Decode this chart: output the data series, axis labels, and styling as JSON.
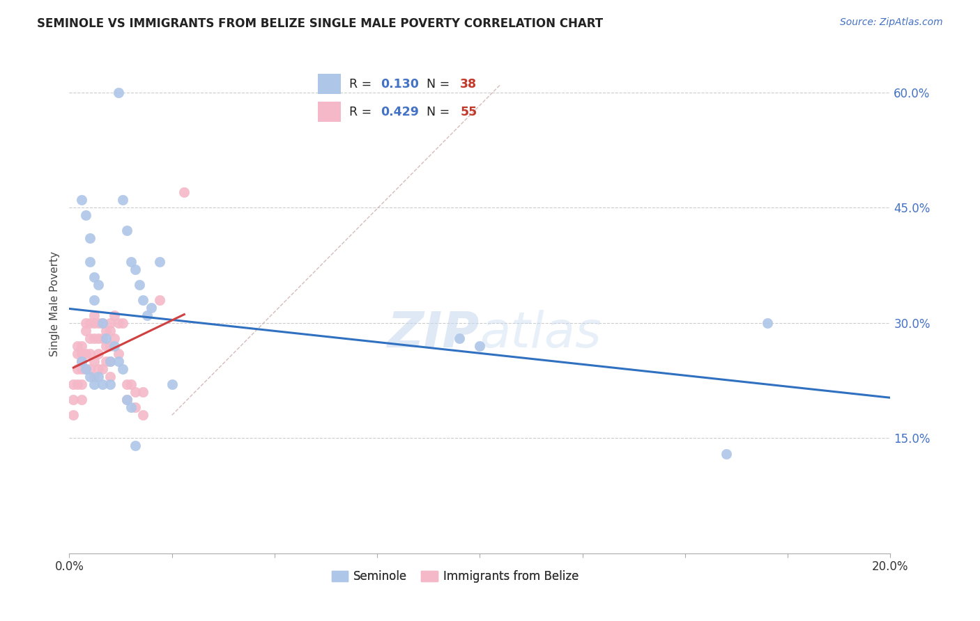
{
  "title": "SEMINOLE VS IMMIGRANTS FROM BELIZE SINGLE MALE POVERTY CORRELATION CHART",
  "source": "Source: ZipAtlas.com",
  "ylabel": "Single Male Poverty",
  "ytick_labels": [
    "15.0%",
    "30.0%",
    "45.0%",
    "60.0%"
  ],
  "ytick_values": [
    0.15,
    0.3,
    0.45,
    0.6
  ],
  "xlim": [
    0.0,
    0.2
  ],
  "ylim": [
    0.0,
    0.65
  ],
  "legend_r1": "0.130",
  "legend_n1": "38",
  "legend_r2": "0.429",
  "legend_n2": "55",
  "seminole_color": "#aec6e8",
  "belize_color": "#f4b8c8",
  "line_blue": "#3070c0",
  "line_red": "#d04040",
  "line_diag_color": "#ccaaaa",
  "seminole_x": [
    0.012,
    0.013,
    0.014,
    0.015,
    0.016,
    0.017,
    0.018,
    0.019,
    0.02,
    0.022,
    0.003,
    0.004,
    0.005,
    0.005,
    0.006,
    0.006,
    0.007,
    0.008,
    0.009,
    0.01,
    0.01,
    0.011,
    0.012,
    0.013,
    0.014,
    0.015,
    0.016,
    0.003,
    0.004,
    0.005,
    0.006,
    0.007,
    0.008,
    0.025,
    0.095,
    0.1,
    0.16,
    0.17
  ],
  "seminole_y": [
    0.6,
    0.46,
    0.42,
    0.38,
    0.37,
    0.35,
    0.33,
    0.31,
    0.32,
    0.38,
    0.46,
    0.44,
    0.41,
    0.38,
    0.36,
    0.33,
    0.35,
    0.3,
    0.28,
    0.25,
    0.22,
    0.27,
    0.25,
    0.24,
    0.2,
    0.19,
    0.14,
    0.25,
    0.24,
    0.23,
    0.22,
    0.23,
    0.22,
    0.22,
    0.28,
    0.27,
    0.13,
    0.3
  ],
  "belize_x": [
    0.001,
    0.001,
    0.001,
    0.002,
    0.002,
    0.002,
    0.002,
    0.003,
    0.003,
    0.003,
    0.003,
    0.003,
    0.003,
    0.004,
    0.004,
    0.004,
    0.004,
    0.005,
    0.005,
    0.005,
    0.005,
    0.006,
    0.006,
    0.006,
    0.006,
    0.006,
    0.007,
    0.007,
    0.007,
    0.007,
    0.008,
    0.008,
    0.008,
    0.009,
    0.009,
    0.009,
    0.01,
    0.01,
    0.01,
    0.01,
    0.01,
    0.011,
    0.011,
    0.012,
    0.012,
    0.013,
    0.014,
    0.014,
    0.015,
    0.016,
    0.016,
    0.018,
    0.018,
    0.022,
    0.028
  ],
  "belize_y": [
    0.22,
    0.2,
    0.18,
    0.27,
    0.26,
    0.24,
    0.22,
    0.27,
    0.26,
    0.25,
    0.24,
    0.22,
    0.2,
    0.3,
    0.29,
    0.26,
    0.24,
    0.3,
    0.28,
    0.26,
    0.24,
    0.31,
    0.3,
    0.28,
    0.25,
    0.23,
    0.3,
    0.28,
    0.26,
    0.24,
    0.3,
    0.28,
    0.24,
    0.29,
    0.27,
    0.25,
    0.3,
    0.29,
    0.27,
    0.25,
    0.23,
    0.31,
    0.28,
    0.3,
    0.26,
    0.3,
    0.22,
    0.2,
    0.22,
    0.21,
    0.19,
    0.21,
    0.18,
    0.33,
    0.47
  ]
}
